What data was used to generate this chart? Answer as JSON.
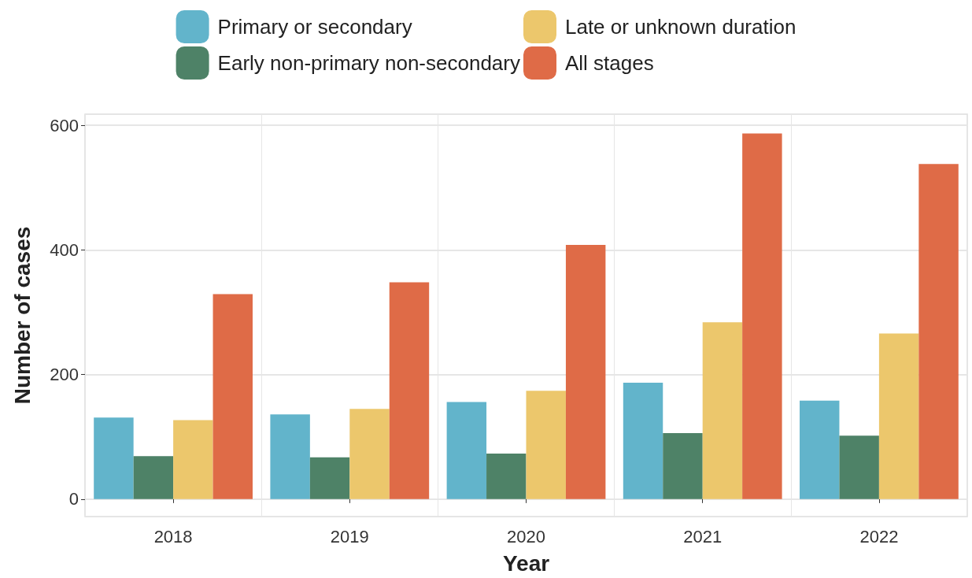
{
  "chart_data": {
    "type": "bar",
    "xlabel": "Year",
    "ylabel": "Number of cases",
    "categories": [
      "2018",
      "2019",
      "2020",
      "2021",
      "2022"
    ],
    "series": [
      {
        "name": "Primary or secondary",
        "color": "#62b4cb",
        "values": [
          131,
          136,
          156,
          187,
          158
        ]
      },
      {
        "name": "Early non-primary non-secondary",
        "color": "#4e8267",
        "values": [
          69,
          67,
          73,
          106,
          102
        ]
      },
      {
        "name": "Late or unknown duration",
        "color": "#ecc76c",
        "values": [
          127,
          145,
          174,
          284,
          266
        ]
      },
      {
        "name": "All stages",
        "color": "#df6b47",
        "values": [
          329,
          348,
          408,
          587,
          538
        ]
      }
    ],
    "ylim": [
      -28,
      618
    ],
    "yticks": [
      0,
      200,
      400,
      600
    ],
    "grid": true,
    "legend": "top"
  }
}
